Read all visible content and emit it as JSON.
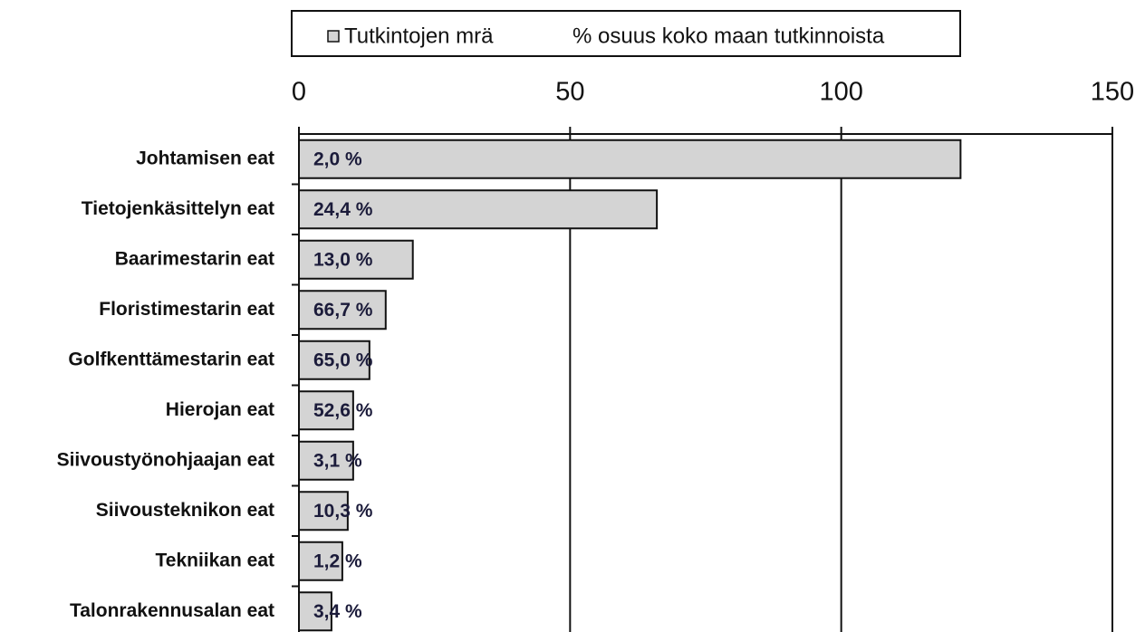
{
  "chart_data": {
    "type": "bar",
    "orientation": "horizontal",
    "categories": [
      "Johtamisen eat",
      "Tietojenkäsittelyn eat",
      "Baarimestarin eat",
      "Floristimestarin eat",
      "Golfkenttämestarin  eat",
      "Hierojan eat",
      "Siivoustyönohjaajan eat",
      "Siivousteknikon eat",
      "Tekniikan eat",
      "Talonrakennusalan eat"
    ],
    "series": [
      {
        "name": "Tutkintojen mrä",
        "color": "#d4d4d4",
        "values": [
          122,
          66,
          21,
          16,
          13,
          10,
          10,
          9,
          8,
          6
        ]
      },
      {
        "name": "% osuus koko maan tutkinnoista",
        "values": [
          2.0,
          24.4,
          13.0,
          66.7,
          65.0,
          52.6,
          3.1,
          10.3,
          1.2,
          3.4
        ],
        "value_labels": [
          "2,0 %",
          "24,4 %",
          "13,0 %",
          "66,7 %",
          "65,0 %",
          "52,6 %",
          "3,1 %",
          "10,3 %",
          "1,2 %",
          "3,4 %"
        ]
      }
    ],
    "xlim": [
      0,
      150
    ],
    "xticks": [
      0,
      50,
      100,
      150
    ],
    "grid": true,
    "legend": "top"
  }
}
